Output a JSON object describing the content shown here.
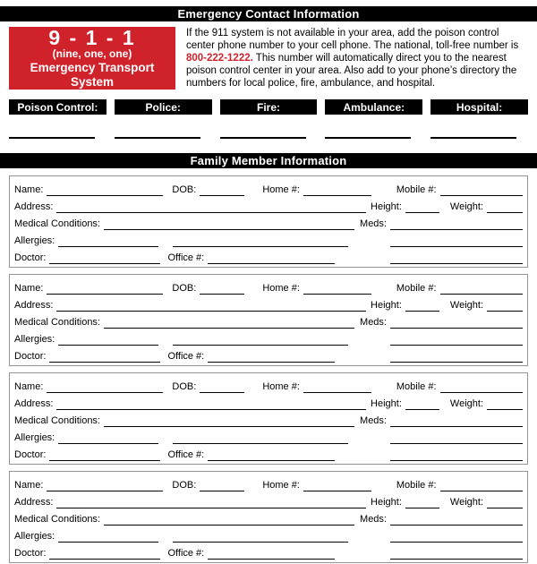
{
  "page": {
    "title_bar": "Emergency Contact Information",
    "family_bar": "Family Member Information",
    "bar_color": "#000000"
  },
  "emergency": {
    "badge": {
      "number": "9 - 1 - 1",
      "words": "(nine, one, one)",
      "caption": "Emergency Transport System",
      "bg_color": "#d0222a",
      "text_color": "#ffffff"
    },
    "intro": {
      "text_before": "If the 911 system is not available in your area, add the poison control center phone number to your cell phone. The national, toll-free number is ",
      "phone": "800-222-1222.",
      "text_after": " This number will automatically direct you to the nearest poison control center in your area. Also add to your phone’s directory the numbers for local police, fire, ambulance, and hospital.",
      "phone_color": "#d0222a"
    },
    "contacts": [
      {
        "label": "Poison Control:",
        "value": ""
      },
      {
        "label": "Police:",
        "value": ""
      },
      {
        "label": "Fire:",
        "value": ""
      },
      {
        "label": "Ambulance:",
        "value": ""
      },
      {
        "label": "Hospital:",
        "value": ""
      }
    ]
  },
  "family": {
    "member_count": 4,
    "fields": {
      "name": "Name:",
      "dob": "DOB:",
      "home": "Home #:",
      "mobile": "Mobile #:",
      "address": "Address:",
      "height": "Height:",
      "weight": "Weight:",
      "medical": "Medical Conditions:",
      "meds": "Meds:",
      "allergies": "Allergies:",
      "doctor": "Doctor:",
      "office": "Office #:"
    },
    "member_values": {
      "all_fields_blank": ""
    }
  }
}
